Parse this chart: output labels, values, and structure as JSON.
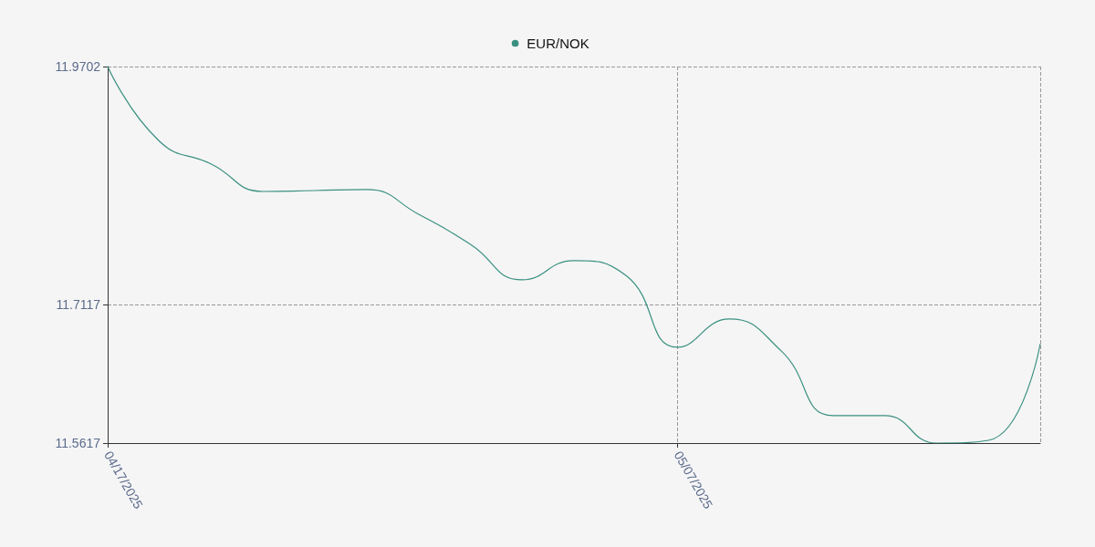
{
  "chart_data": {
    "type": "line",
    "categories": [
      "04/17/2025",
      null,
      null,
      null,
      null,
      null,
      null,
      null,
      null,
      null,
      null,
      "05/07/2025",
      null,
      null,
      null,
      null,
      null,
      null,
      null
    ],
    "series": [
      {
        "name": "EUR/NOK",
        "color": "#3a9080",
        "values": [
          11.9702,
          11.8891,
          11.8644,
          11.8347,
          11.8357,
          11.8367,
          11.81,
          11.7774,
          11.7388,
          11.7596,
          11.7437,
          11.6656,
          11.6963,
          11.6617,
          11.5914,
          11.5914,
          11.5617,
          11.5647,
          11.6695
        ]
      }
    ],
    "ylim": [
      11.5617,
      11.9702
    ],
    "yticks": [
      11.5617,
      11.7117,
      11.9702
    ],
    "grid": true,
    "legend": "top",
    "marker": "none",
    "line_style": "solid"
  }
}
